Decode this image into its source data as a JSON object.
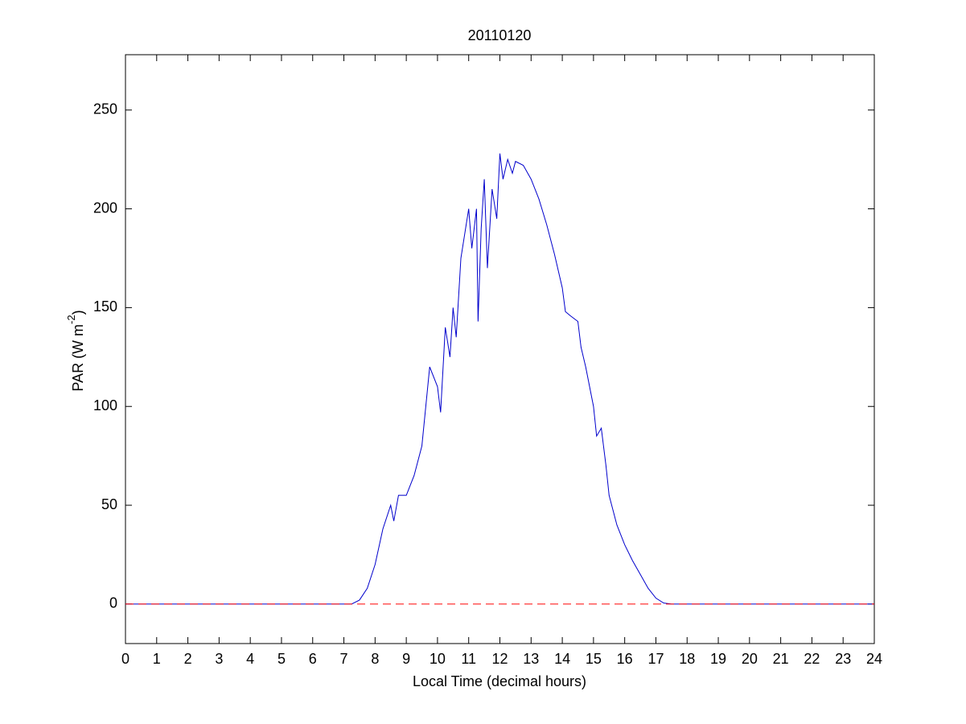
{
  "chart_data": {
    "type": "line",
    "title": "20110120",
    "x_label": "Local Time (decimal hours)",
    "y_label": {
      "text": "PAR (W m",
      "sup": "-2",
      "end": ")"
    },
    "x": [
      0,
      7.25,
      7.5,
      7.75,
      8,
      8.25,
      8.5,
      8.6,
      8.75,
      9,
      9.25,
      9.5,
      9.75,
      10,
      10.1,
      10.25,
      10.4,
      10.5,
      10.6,
      10.75,
      11,
      11.1,
      11.25,
      11.3,
      11.4,
      11.5,
      11.6,
      11.75,
      11.9,
      12,
      12.1,
      12.25,
      12.4,
      12.5,
      12.75,
      13,
      13.25,
      13.5,
      13.75,
      14,
      14.1,
      14.25,
      14.5,
      14.6,
      14.75,
      15,
      15.1,
      15.25,
      15.4,
      15.5,
      15.75,
      16,
      16.25,
      16.5,
      16.75,
      17,
      17.25,
      17.5,
      24
    ],
    "series": [
      {
        "color": "#0000cc",
        "values": [
          0,
          0,
          2,
          8,
          20,
          38,
          50,
          42,
          55,
          55,
          65,
          80,
          120,
          110,
          97,
          140,
          125,
          150,
          135,
          175,
          200,
          180,
          200,
          143,
          190,
          215,
          170,
          210,
          195,
          228,
          215,
          225,
          218,
          224,
          222,
          215,
          205,
          192,
          177,
          160,
          148,
          146,
          143,
          130,
          120,
          100,
          85,
          89,
          70,
          55,
          40,
          30,
          22,
          15,
          8,
          3,
          0.5,
          0,
          0
        ]
      }
    ],
    "hlines": [
      {
        "y": 0,
        "color": "#ff0000",
        "style": "dashed"
      }
    ],
    "xlim": [
      0,
      24
    ],
    "xticks": [
      0,
      1,
      2,
      3,
      4,
      5,
      6,
      7,
      8,
      9,
      10,
      11,
      12,
      13,
      14,
      15,
      16,
      17,
      18,
      19,
      20,
      21,
      22,
      23,
      24
    ],
    "ylim": [
      -20,
      278
    ],
    "yticks": [
      0,
      50,
      100,
      150,
      200,
      250
    ]
  }
}
